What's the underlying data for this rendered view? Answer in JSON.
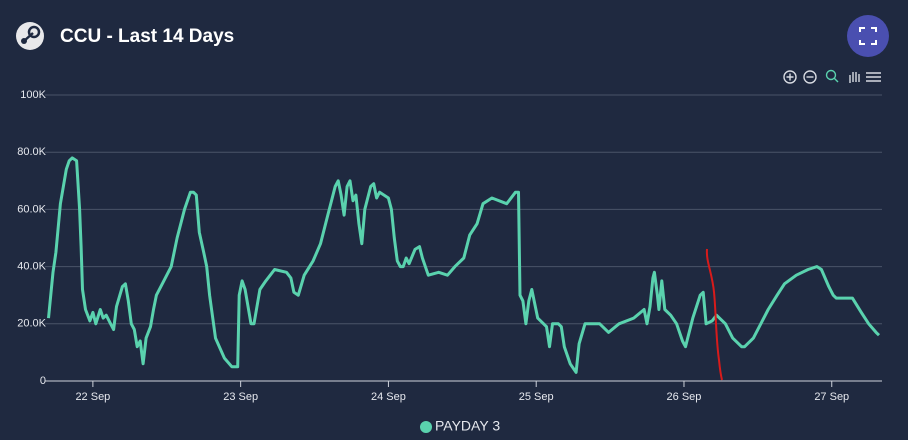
{
  "chart_data": {
    "type": "line",
    "title": "CCU - Last 14 Days",
    "x": [
      21.7,
      21.73,
      21.75,
      21.78,
      21.82,
      21.84,
      21.86,
      21.89,
      21.91,
      21.92,
      21.93,
      21.95,
      21.98,
      22.0,
      22.02,
      22.05,
      22.07,
      22.09,
      22.12,
      22.14,
      22.16,
      22.2,
      22.22,
      22.24,
      22.26,
      22.28,
      22.3,
      22.32,
      22.34,
      22.36,
      22.39,
      22.41,
      22.43,
      22.48,
      22.53,
      22.57,
      22.62,
      22.66,
      22.68,
      22.7,
      22.72,
      22.75,
      22.77,
      22.79,
      22.83,
      22.89,
      22.94,
      22.98,
      22.99,
      23.01,
      23.03,
      23.07,
      23.09,
      23.13,
      23.17,
      23.23,
      23.31,
      23.34,
      23.36,
      23.39,
      23.43,
      23.49,
      23.54,
      23.59,
      23.64,
      23.66,
      23.68,
      23.7,
      23.72,
      23.74,
      23.76,
      23.78,
      23.8,
      23.82,
      23.84,
      23.88,
      23.9,
      23.92,
      23.94,
      24.0,
      24.02,
      24.04,
      24.06,
      24.08,
      24.1,
      24.12,
      24.14,
      24.18,
      24.21,
      24.23,
      24.27,
      24.34,
      24.4,
      24.45,
      24.51,
      24.55,
      24.6,
      24.64,
      24.7,
      24.8,
      24.86,
      24.88,
      24.89,
      24.91,
      24.93,
      24.95,
      24.97,
      25.01,
      25.05,
      25.07,
      25.09,
      25.11,
      25.15,
      25.17,
      25.19,
      25.23,
      25.27,
      25.29,
      25.33,
      25.43,
      25.49,
      25.56,
      25.66,
      25.73,
      25.75,
      25.77,
      25.79,
      25.8,
      25.82,
      25.83,
      25.85,
      25.87,
      25.91,
      25.95,
      25.99,
      26.01,
      26.06,
      26.11,
      26.13,
      26.15,
      26.19,
      26.22,
      26.28,
      26.33,
      26.39,
      26.41,
      26.47,
      26.52,
      26.57,
      26.63,
      26.68,
      26.76,
      26.84,
      26.9,
      26.93,
      26.98,
      27.01,
      27.03,
      27.14,
      27.2,
      27.25,
      27.3,
      27.32
    ],
    "series": [
      {
        "name": "PAYDAY 3",
        "color": "#5ad2ae",
        "values": [
          22000,
          38000,
          45000,
          62000,
          74000,
          77000,
          78000,
          77000,
          60000,
          47000,
          32000,
          25000,
          21000,
          24000,
          20000,
          25000,
          22000,
          23000,
          20000,
          18000,
          26000,
          33000,
          34000,
          28000,
          20000,
          18000,
          12000,
          14000,
          6000,
          15000,
          19000,
          25000,
          30000,
          35000,
          40000,
          50000,
          60000,
          66000,
          66000,
          65000,
          52000,
          45000,
          40000,
          30000,
          15000,
          8000,
          5000,
          5000,
          30000,
          35000,
          32000,
          20000,
          20000,
          32000,
          35000,
          39000,
          38000,
          36000,
          31000,
          30000,
          37000,
          42000,
          48000,
          58000,
          68000,
          70000,
          65000,
          58000,
          68000,
          70000,
          63000,
          65000,
          55000,
          48000,
          60000,
          68000,
          69000,
          64000,
          66000,
          64000,
          60000,
          50000,
          42000,
          40000,
          40000,
          43000,
          41000,
          46000,
          47000,
          43000,
          37000,
          38000,
          37000,
          40000,
          43000,
          51000,
          55000,
          62000,
          64000,
          62000,
          66000,
          66000,
          30000,
          28000,
          20000,
          28000,
          32000,
          22000,
          20000,
          19000,
          12000,
          20000,
          20000,
          19000,
          12000,
          6000,
          3000,
          13000,
          20000,
          20000,
          17000,
          20000,
          22000,
          25000,
          20000,
          26000,
          36000,
          38000,
          30000,
          25000,
          35000,
          25000,
          23000,
          20000,
          14000,
          12000,
          22000,
          30000,
          31000,
          20000,
          21000,
          23000,
          20000,
          15000,
          12000,
          12000,
          15000,
          20000,
          25000,
          30000,
          34000,
          37000,
          39000,
          40000,
          39000,
          33000,
          30000,
          29000,
          29000,
          24000,
          20000,
          17000,
          16000
        ]
      }
    ],
    "xlim": [
      21.676,
      27.34
    ],
    "xticks": [
      {
        "value": 22,
        "label": "22 Sep"
      },
      {
        "value": 23,
        "label": "23 Sep"
      },
      {
        "value": 24,
        "label": "24 Sep"
      },
      {
        "value": 25,
        "label": "25 Sep"
      },
      {
        "value": 26,
        "label": "26 Sep"
      },
      {
        "value": 27,
        "label": "27 Sep"
      }
    ],
    "ylim": [
      0,
      100000
    ],
    "yticks": [
      0,
      {
        "value": 20000,
        "label": "20.0K"
      },
      {
        "value": 40000,
        "label": "40.0K"
      },
      {
        "value": 60000,
        "label": "60.0K"
      },
      {
        "value": 80000,
        "label": "80.0K"
      },
      {
        "value": 100000,
        "label": "100K"
      }
    ],
    "grid": true
  }
}
